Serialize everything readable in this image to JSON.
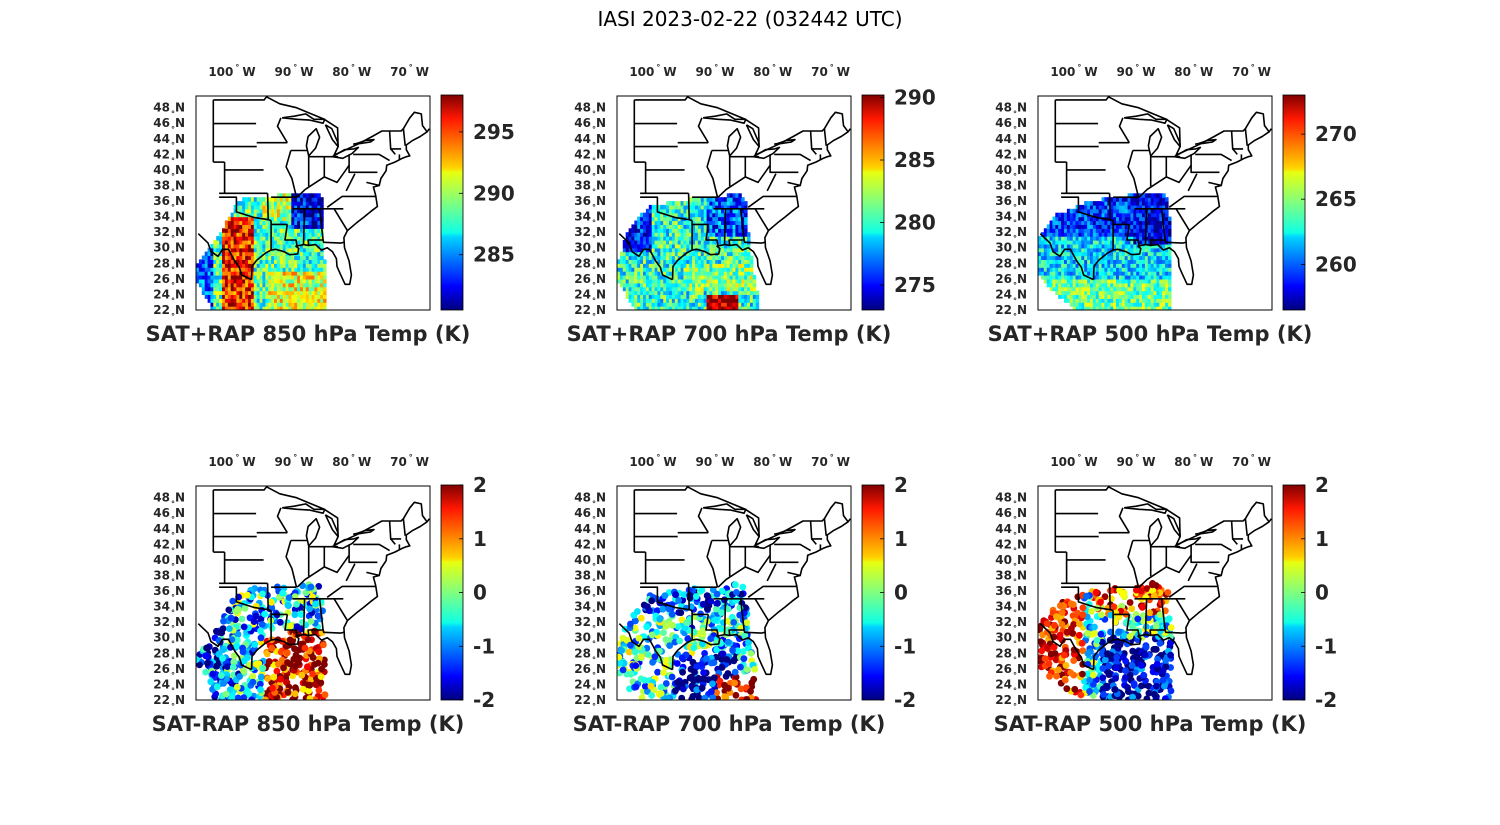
{
  "figure": {
    "title": "IASI 2023-02-22 (032442 UTC)",
    "lon_labels": [
      "100",
      "90",
      "80",
      "70"
    ],
    "lon_suffix": "W",
    "lat_labels": [
      "48",
      "46",
      "44",
      "42",
      "40",
      "38",
      "36",
      "34",
      "32",
      "30",
      "28",
      "26",
      "24",
      "22"
    ],
    "lat_suffix": "N",
    "degree_symbol": "°",
    "colormap": "jet",
    "panels": [
      {
        "title": "SAT+RAP 850 hPa Temp (K)",
        "field": "total",
        "level_hPa": 850,
        "clim": [
          280.5,
          298
        ],
        "cb_ticks": [
          "295",
          "290",
          "285"
        ],
        "cb_tick_values": [
          295,
          290,
          285
        ]
      },
      {
        "title": "SAT+RAP 700 hPa Temp (K)",
        "field": "total",
        "level_hPa": 700,
        "clim": [
          273,
          290.2
        ],
        "cb_ticks": [
          "290",
          "285",
          "280",
          "275"
        ],
        "cb_tick_values": [
          290,
          285,
          280,
          275
        ]
      },
      {
        "title": "SAT+RAP 500 hPa Temp (K)",
        "field": "total",
        "level_hPa": 500,
        "clim": [
          256.5,
          273
        ],
        "cb_ticks": [
          "270",
          "265",
          "260"
        ],
        "cb_tick_values": [
          270,
          265,
          260
        ]
      },
      {
        "title": "SAT-RAP 850 hPa Temp (K)",
        "field": "difference",
        "level_hPa": 850,
        "clim": [
          -2,
          2
        ],
        "cb_ticks": [
          "2",
          "1",
          "0",
          "-1",
          "-2"
        ],
        "cb_tick_values": [
          2,
          1,
          0,
          -1,
          -2
        ]
      },
      {
        "title": "SAT-RAP 700 hPa Temp (K)",
        "field": "difference",
        "level_hPa": 700,
        "clim": [
          -2,
          2
        ],
        "cb_ticks": [
          "2",
          "1",
          "0",
          "-1",
          "-2"
        ],
        "cb_tick_values": [
          2,
          1,
          0,
          -1,
          -2
        ]
      },
      {
        "title": "SAT-RAP 500 hPa Temp (K)",
        "field": "difference",
        "level_hPa": 500,
        "clim": [
          -2,
          2
        ],
        "cb_ticks": [
          "2",
          "1",
          "0",
          "-1",
          "-2"
        ],
        "cb_tick_values": [
          2,
          1,
          0,
          -1,
          -2
        ]
      }
    ]
  }
}
